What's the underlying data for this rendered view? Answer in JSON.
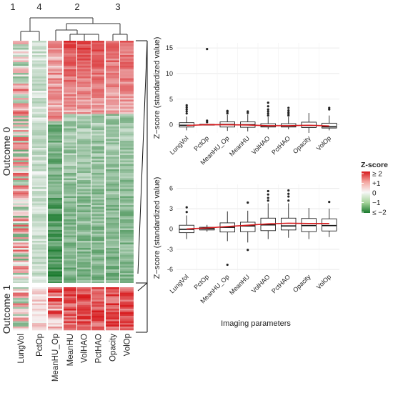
{
  "chart_data": [
    {
      "type": "heatmap",
      "columns": [
        "LungVol",
        "PctOp",
        "MeanHU_Op",
        "MeanHU",
        "VolHAO",
        "PctHAO",
        "Opacity",
        "VolOp"
      ],
      "cluster_labels": [
        "1",
        "4",
        "2",
        "3"
      ],
      "row_groups": [
        "Outcome 0",
        "Outcome 1"
      ],
      "legend": {
        "title": "Z-score",
        "ticks": [
          "≥ 2",
          "+1",
          "0",
          "−1",
          "≤ −2"
        ],
        "colors": [
          "#d7191c",
          "#f4a6a0",
          "#f7f7f7",
          "#a6d49b",
          "#1a7a2e"
        ]
      }
    },
    {
      "type": "box",
      "panel": "Outcome 0",
      "categories": [
        "LungVol",
        "PctOp",
        "MeanHU_Op",
        "MeanHU",
        "VolHAO",
        "PctHAO",
        "Opacity",
        "VolOp"
      ],
      "ylabel": "Z−score (standardized value)",
      "yticks": [
        0,
        5,
        10,
        15
      ],
      "ylim": [
        -1.6,
        16
      ],
      "boxes": [
        {
          "low": -1.1,
          "q1": -0.45,
          "median": -0.1,
          "q3": 0.4,
          "high": 1.6,
          "outliers": [
            2.2,
            2.6,
            3.0,
            3.4,
            3.8
          ]
        },
        {
          "low": -0.1,
          "q1": 0.0,
          "median": 0.02,
          "q3": 0.06,
          "high": 0.12,
          "outliers": [
            0.5,
            0.8,
            14.8
          ]
        },
        {
          "low": -1.2,
          "q1": -0.45,
          "median": 0.05,
          "q3": 0.55,
          "high": 1.9,
          "outliers": [
            2.2,
            2.5,
            2.7
          ]
        },
        {
          "low": -1.3,
          "q1": -0.5,
          "median": 0.0,
          "q3": 0.55,
          "high": 2.0,
          "outliers": [
            2.3,
            2.6
          ]
        },
        {
          "low": -0.9,
          "q1": -0.45,
          "median": -0.25,
          "q3": 0.2,
          "high": 1.5,
          "outliers": [
            1.8,
            2.2,
            2.6,
            3.0,
            3.6,
            4.3
          ]
        },
        {
          "low": -0.9,
          "q1": -0.45,
          "median": -0.25,
          "q3": 0.2,
          "high": 1.5,
          "outliers": [
            1.8,
            2.1,
            2.4,
            2.8,
            3.3
          ]
        },
        {
          "low": -1.6,
          "q1": -0.55,
          "median": -0.15,
          "q3": 0.5,
          "high": 2.3,
          "outliers": []
        },
        {
          "low": -1.1,
          "q1": -0.65,
          "median": -0.4,
          "q3": 0.3,
          "high": 1.8,
          "outliers": [
            3.0,
            3.3
          ]
        }
      ],
      "mean_line": [
        -0.15,
        0.02,
        0.0,
        -0.05,
        -0.2,
        -0.2,
        -0.1,
        -0.25
      ]
    },
    {
      "type": "box",
      "panel": "Outcome 1",
      "categories": [
        "LungVol",
        "PctOp",
        "MeanHU_Op",
        "MeanHU",
        "VolHAO",
        "PctHAO",
        "Opacity",
        "VolOp"
      ],
      "ylabel": "Z−score (standardized value)",
      "xlabel": "Imaging parameters",
      "yticks": [
        -6,
        -3,
        0,
        3,
        6
      ],
      "ylim": [
        -6.3,
        6.6
      ],
      "boxes": [
        {
          "low": -1.5,
          "q1": -0.55,
          "median": -0.05,
          "q3": 0.55,
          "high": 2.0,
          "outliers": [
            2.5,
            3.2
          ]
        },
        {
          "low": -0.4,
          "q1": -0.15,
          "median": 0.05,
          "q3": 0.25,
          "high": 0.6,
          "outliers": []
        },
        {
          "low": -1.8,
          "q1": -0.45,
          "median": 0.25,
          "q3": 0.9,
          "high": 2.6,
          "outliers": [
            -5.3
          ]
        },
        {
          "low": -2.0,
          "q1": -0.4,
          "median": 0.45,
          "q3": 1.0,
          "high": 2.7,
          "outliers": [
            3.9,
            -3.1
          ]
        },
        {
          "low": -1.5,
          "q1": -0.25,
          "median": 0.6,
          "q3": 1.6,
          "high": 3.8,
          "outliers": [
            4.2,
            4.6,
            5.1,
            5.6
          ]
        },
        {
          "low": -1.3,
          "q1": -0.15,
          "median": 0.45,
          "q3": 1.6,
          "high": 3.8,
          "outliers": [
            4.2,
            4.8,
            5.2,
            5.7
          ]
        },
        {
          "low": -1.5,
          "q1": -0.4,
          "median": 0.5,
          "q3": 1.55,
          "high": 3.1,
          "outliers": []
        },
        {
          "low": -1.2,
          "q1": -0.3,
          "median": 0.5,
          "q3": 1.5,
          "high": 3.0,
          "outliers": [
            4.0
          ]
        }
      ],
      "mean_line": [
        0.0,
        0.15,
        0.35,
        0.55,
        0.75,
        0.85,
        0.8,
        0.8
      ]
    }
  ]
}
